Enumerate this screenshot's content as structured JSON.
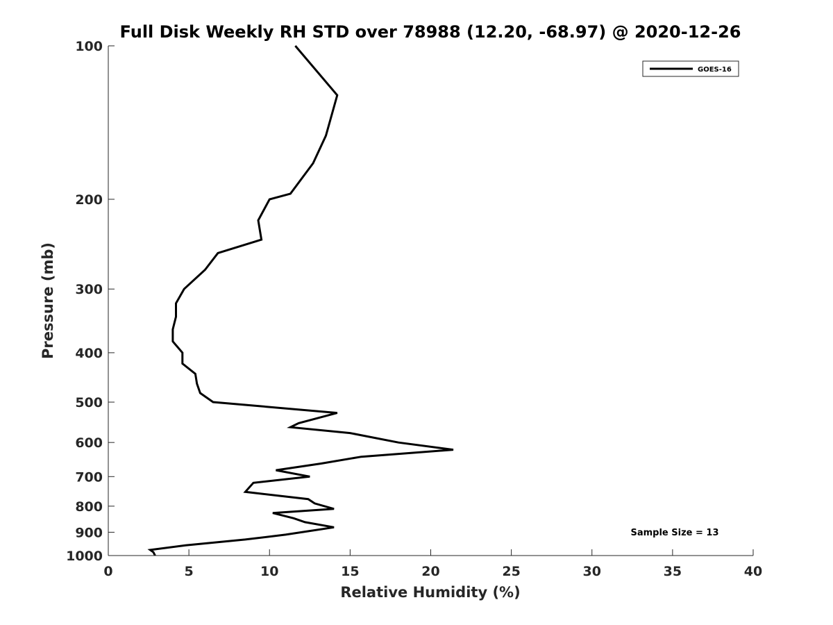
{
  "colors": {
    "series": "#000000",
    "axis": "#262626",
    "background": "#ffffff"
  },
  "chart_data": {
    "type": "line",
    "title": "Full Disk Weekly RH STD over 78988 (12.20, -68.97) @ 2020-12-26",
    "xlabel": "Relative Humidity (%)",
    "ylabel": "Pressure (mb)",
    "xlim": [
      0,
      40
    ],
    "ylim": [
      100,
      1000
    ],
    "y_scale": "log",
    "y_direction": "reversed",
    "grid": false,
    "legend_position": "top-right",
    "x_ticks": [
      "0",
      "5",
      "10",
      "15",
      "20",
      "25",
      "30",
      "35",
      "40"
    ],
    "y_ticks": [
      "100",
      "200",
      "300",
      "400",
      "500",
      "600",
      "700",
      "800",
      "900",
      "1000"
    ],
    "annotation": "Sample Size = 13",
    "series": [
      {
        "name": "GOES-16",
        "color": "#000000",
        "points": [
          [
            11.6,
            100
          ],
          [
            14.2,
            125
          ],
          [
            13.5,
            150
          ],
          [
            12.7,
            170
          ],
          [
            11.3,
            195
          ],
          [
            10.0,
            200
          ],
          [
            9.3,
            220
          ],
          [
            9.5,
            240
          ],
          [
            6.8,
            255
          ],
          [
            6.0,
            275
          ],
          [
            4.7,
            300
          ],
          [
            4.2,
            320
          ],
          [
            4.2,
            340
          ],
          [
            4.0,
            360
          ],
          [
            4.0,
            380
          ],
          [
            4.6,
            400
          ],
          [
            4.6,
            420
          ],
          [
            5.4,
            440
          ],
          [
            5.5,
            460
          ],
          [
            5.7,
            480
          ],
          [
            6.5,
            500
          ],
          [
            14.2,
            525
          ],
          [
            11.8,
            550
          ],
          [
            11.3,
            560
          ],
          [
            15.0,
            575
          ],
          [
            18.0,
            600
          ],
          [
            21.4,
            620
          ],
          [
            15.7,
            640
          ],
          [
            13.2,
            660
          ],
          [
            10.4,
            680
          ],
          [
            12.5,
            700
          ],
          [
            9.0,
            720
          ],
          [
            8.5,
            750
          ],
          [
            12.4,
            775
          ],
          [
            12.8,
            790
          ],
          [
            14.0,
            810
          ],
          [
            10.2,
            825
          ],
          [
            11.5,
            845
          ],
          [
            12.2,
            860
          ],
          [
            14.0,
            880
          ],
          [
            11.0,
            910
          ],
          [
            8.5,
            930
          ],
          [
            4.8,
            955
          ],
          [
            2.6,
            975
          ],
          [
            2.8,
            985
          ],
          [
            2.9,
            1000
          ]
        ]
      }
    ]
  }
}
